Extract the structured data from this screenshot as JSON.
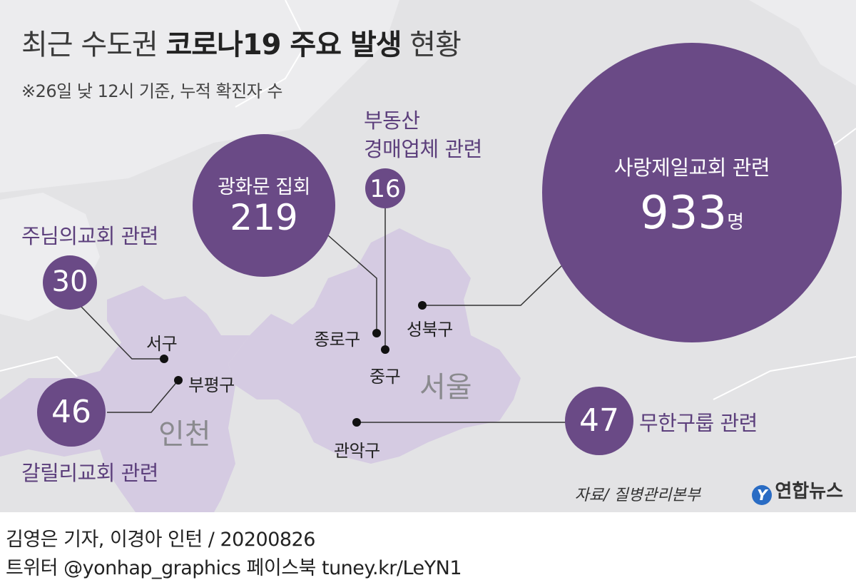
{
  "title": {
    "light_part": "최근 수도권",
    "bold_part": "코로나19 주요 발생",
    "tail_part": "현황"
  },
  "subtitle": "※26일 낮 12시 기준, 누적 확진자 수",
  "clusters": {
    "sarang": {
      "label": "사랑제일교회 관련",
      "count": "933",
      "unit": "명"
    },
    "gwanghwamun": {
      "label": "광화문 집회",
      "count": "219"
    },
    "realestate": {
      "label_line1": "부동산",
      "label_line2": "경매업체 관련",
      "count": "16"
    },
    "junim": {
      "label": "주님의교회 관련",
      "count": "30"
    },
    "galilee": {
      "label": "갈릴리교회 관련",
      "count": "46"
    },
    "muhan": {
      "label": "무한구룹 관련",
      "count": "47"
    }
  },
  "districts": {
    "seongbuk": "성북구",
    "jongno": "종로구",
    "jung": "중구",
    "gwanak": "관악구",
    "seo": "서구",
    "bupyeong": "부평구"
  },
  "cities": {
    "seoul": "서울",
    "incheon": "인천"
  },
  "source": "자료/ 질병관리본부",
  "logo": "연합뉴스",
  "credit": "김영은 기자, 이경아 인턴 / 20200826",
  "social": "트위터 @yonhap_graphics  페이스북 tuney.kr/LeYN1",
  "colors": {
    "bubble": "#6a4a86",
    "label": "#5c3f7c",
    "region_fill": "#d5cbe2",
    "map_background": "#e3e3e5",
    "land_light": "#ececee"
  }
}
